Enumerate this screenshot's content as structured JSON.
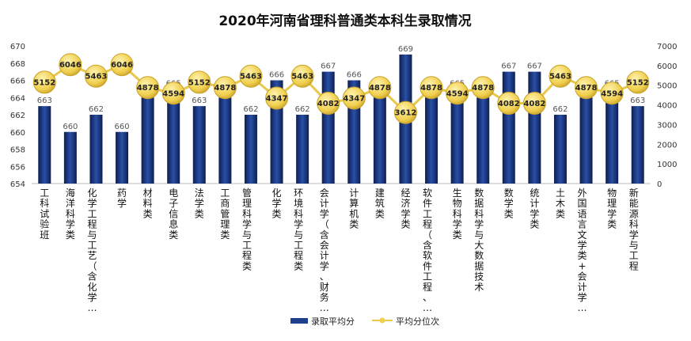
{
  "chart_data": {
    "type": "bar",
    "title": "2020年河南省理科普通类本科生录取情况",
    "categories": [
      [
        "工",
        "科",
        "试",
        "验",
        "班"
      ],
      [
        "海",
        "洋",
        "科",
        "学",
        "类"
      ],
      [
        "化",
        "学",
        "工",
        "程",
        "与",
        "工",
        "艺",
        "（",
        "含",
        "化",
        "学",
        "…"
      ],
      [
        "药",
        "学"
      ],
      [
        "材",
        "料",
        "类"
      ],
      [
        "电",
        "子",
        "信",
        "息",
        "类"
      ],
      [
        "法",
        "学",
        "类"
      ],
      [
        "工",
        "商",
        "管",
        "理",
        "类"
      ],
      [
        "管",
        "理",
        "科",
        "学",
        "与",
        "工",
        "程",
        "类"
      ],
      [
        "化",
        "学",
        "类"
      ],
      [
        "环",
        "境",
        "科",
        "学",
        "与",
        "工",
        "程",
        "类"
      ],
      [
        "会",
        "计",
        "学",
        "（",
        "含",
        "会",
        "计",
        "学",
        "、",
        "财",
        "务",
        "…"
      ],
      [
        "计",
        "算",
        "机",
        "类"
      ],
      [
        "建",
        "筑",
        "类"
      ],
      [
        "经",
        "济",
        "学",
        "类"
      ],
      [
        "软",
        "件",
        "工",
        "程",
        "（",
        "含",
        "软",
        "件",
        "工",
        "程",
        "、",
        "…"
      ],
      [
        "生",
        "物",
        "科",
        "学",
        "类"
      ],
      [
        "数",
        "据",
        "科",
        "学",
        "与",
        "大",
        "数",
        "据",
        "技",
        "术"
      ],
      [
        "数",
        "学",
        "类"
      ],
      [
        "统",
        "计",
        "学",
        "类"
      ],
      [
        "土",
        "木",
        "类"
      ],
      [
        "外",
        "国",
        "语",
        "言",
        "文",
        "学",
        "类",
        "+",
        "会",
        "计",
        "学",
        "…"
      ],
      [
        "物",
        "理",
        "学",
        "类"
      ],
      [
        "新",
        "能",
        "源",
        "科",
        "学",
        "与",
        "工",
        "程"
      ]
    ],
    "series": [
      {
        "name": "录取平均分",
        "type": "bar",
        "axis": "left",
        "values": [
          663,
          660,
          662,
          660,
          664,
          665,
          663,
          664,
          662,
          666,
          662,
          667,
          666,
          664,
          669,
          664,
          665,
          664,
          667,
          667,
          662,
          664,
          665,
          663
        ],
        "labels": [
          "663",
          "660",
          "662",
          "660",
          "664",
          "665",
          "663",
          "664",
          "662",
          "666",
          "662",
          "667",
          "666",
          "664",
          "669",
          "664",
          "665",
          "664",
          "667",
          "667",
          "662",
          "664",
          "665",
          "663"
        ]
      },
      {
        "name": "平均分位次",
        "type": "line",
        "axis": "right",
        "values": [
          5152,
          6046,
          5463,
          6046,
          4878,
          4594,
          5152,
          4878,
          5463,
          4347,
          5463,
          4082,
          4347,
          4878,
          3612,
          4878,
          4594,
          4878,
          4082,
          4082,
          5463,
          4878,
          4594,
          5152
        ],
        "labels": [
          "5152",
          "6046",
          "5463",
          "6046",
          "4878",
          "4594",
          "5152",
          "4878",
          "5463",
          "4347",
          "5463",
          "4082",
          "4347",
          "4878",
          "3612",
          "4878",
          "4594",
          "4878",
          "4082",
          "4082",
          "5463",
          "4878",
          "4594",
          "5152"
        ]
      }
    ],
    "y_left": {
      "min": 654,
      "max": 670,
      "ticks": [
        "654",
        "656",
        "658",
        "660",
        "662",
        "664",
        "666",
        "668",
        "670"
      ]
    },
    "y_right": {
      "min": 0,
      "max": 7000,
      "ticks": [
        "0",
        "1000",
        "2000",
        "3000",
        "4000",
        "5000",
        "6000",
        "7000"
      ]
    },
    "grid": false,
    "legend_position": "bottom",
    "colors": {
      "bar": "#1f3f8c",
      "bar_dark": "#0f2357",
      "line": "#e8c84a",
      "marker": "#f2d560"
    }
  }
}
